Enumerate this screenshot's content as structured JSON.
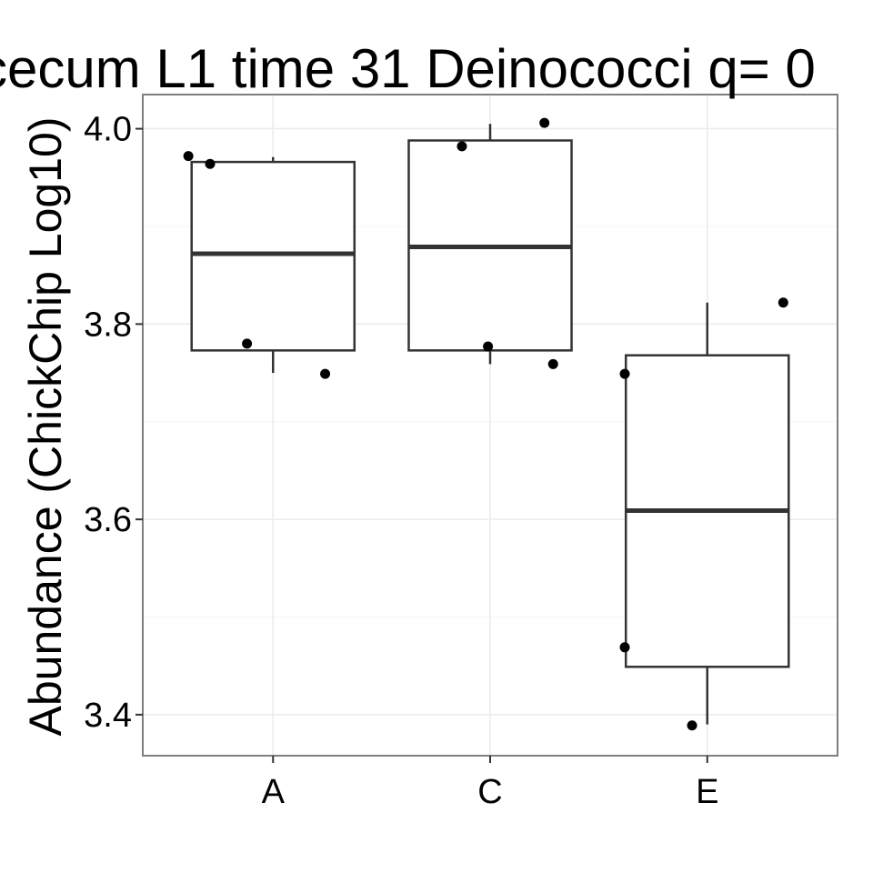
{
  "chart_data": {
    "type": "box",
    "title": "cecum L1 time 31 Deinococci q= 0",
    "xlabel": "",
    "ylabel": "Abundance (ChickChip Log10)",
    "categories": [
      "A",
      "C",
      "E"
    ],
    "ylim": [
      3.358,
      4.035
    ],
    "y_ticks": [
      3.4,
      3.6,
      3.8,
      4.0
    ],
    "y_tick_labels": [
      "3.4",
      "3.6",
      "3.8",
      "4.0"
    ],
    "grid": true,
    "boxes": [
      {
        "category": "A",
        "whisker_low": 3.75,
        "q1": 3.773,
        "median": 3.872,
        "q3": 3.966,
        "whisker_high": 3.971
      },
      {
        "category": "C",
        "whisker_low": 3.759,
        "q1": 3.773,
        "median": 3.879,
        "q3": 3.988,
        "whisker_high": 4.005
      },
      {
        "category": "E",
        "whisker_low": 3.39,
        "q1": 3.449,
        "median": 3.609,
        "q3": 3.768,
        "whisker_high": 3.822
      }
    ],
    "points": [
      {
        "category": "A",
        "jitter": -0.39,
        "y": 3.972
      },
      {
        "category": "A",
        "jitter": -0.29,
        "y": 3.964
      },
      {
        "category": "A",
        "jitter": -0.12,
        "y": 3.78
      },
      {
        "category": "A",
        "jitter": 0.24,
        "y": 3.749
      },
      {
        "category": "C",
        "jitter": -0.13,
        "y": 3.982
      },
      {
        "category": "C",
        "jitter": 0.25,
        "y": 4.006
      },
      {
        "category": "C",
        "jitter": -0.01,
        "y": 3.777
      },
      {
        "category": "C",
        "jitter": 0.29,
        "y": 3.759
      },
      {
        "category": "E",
        "jitter": -0.38,
        "y": 3.749
      },
      {
        "category": "E",
        "jitter": -0.38,
        "y": 3.469
      },
      {
        "category": "E",
        "jitter": -0.07,
        "y": 3.389
      },
      {
        "category": "E",
        "jitter": 0.35,
        "y": 3.822
      }
    ]
  }
}
